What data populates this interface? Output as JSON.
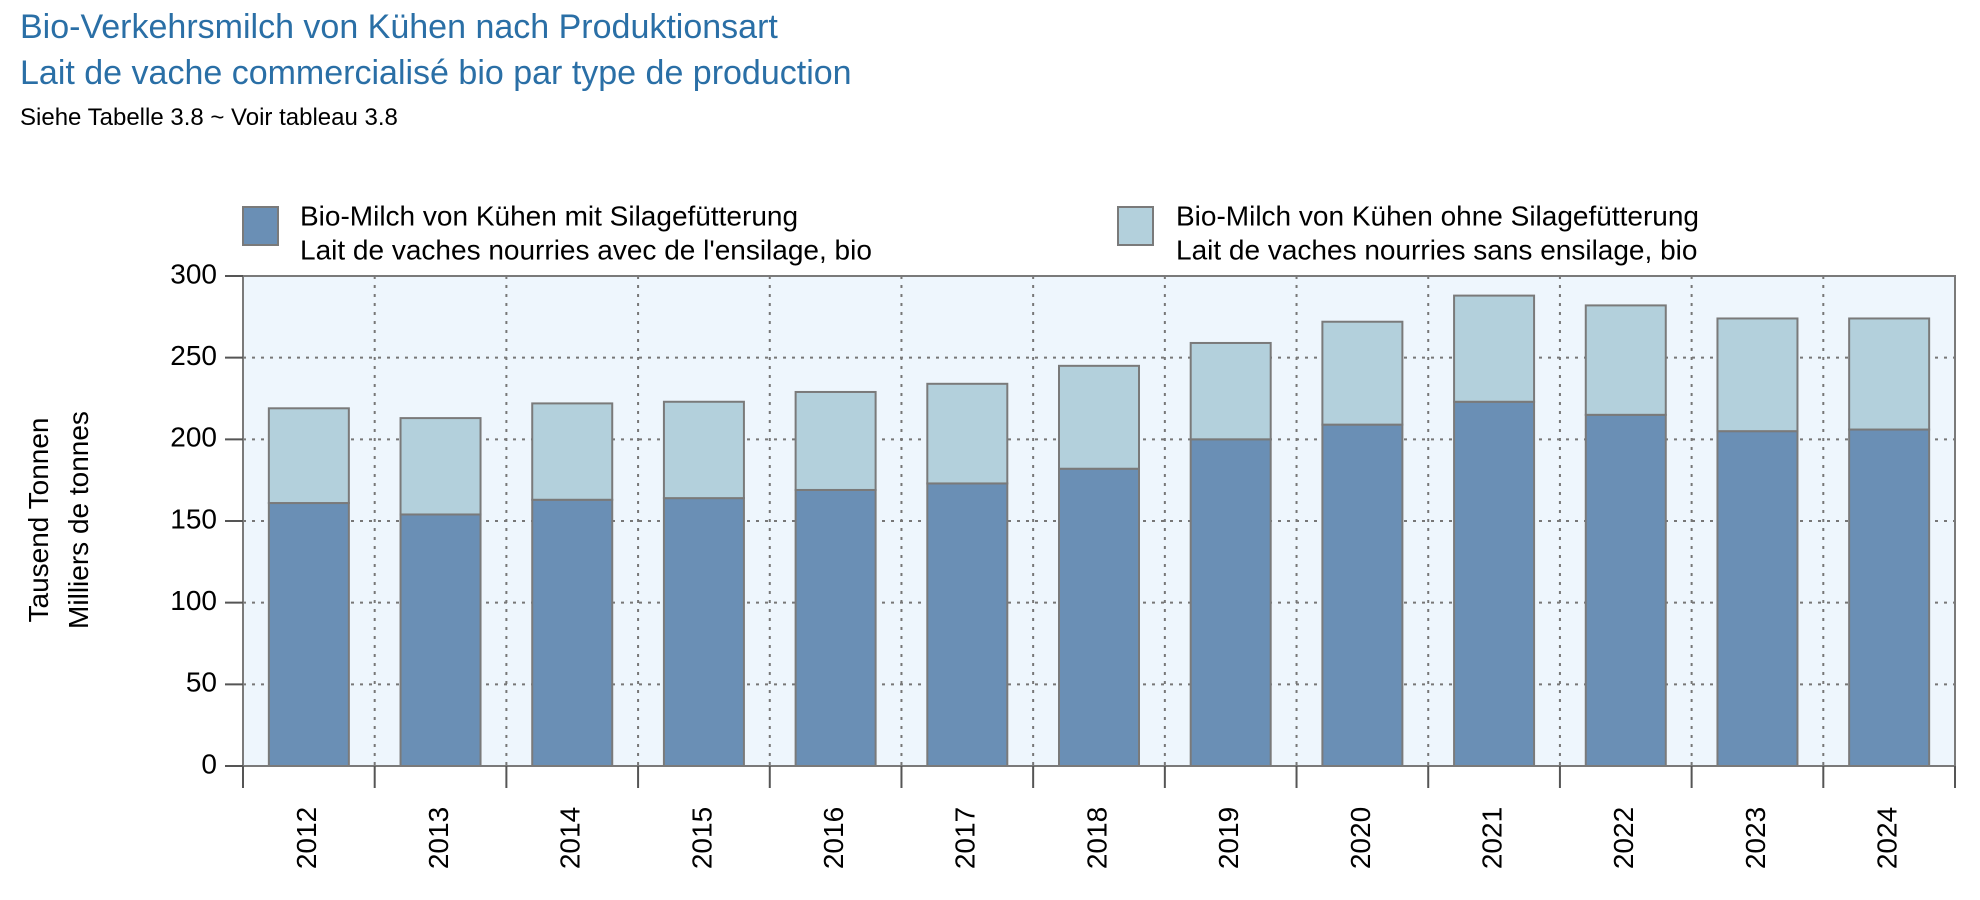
{
  "header": {
    "title_de": "Bio-Verkehrsmilch von Kühen nach Produktionsart",
    "title_fr": "Lait de vache commercialisé bio par type de production",
    "subtitle": "Siehe Tabelle 3.8  ~  Voir tableau 3.8"
  },
  "chart_data": {
    "type": "bar",
    "stacked": true,
    "categories": [
      "2012",
      "2013",
      "2014",
      "2015",
      "2016",
      "2017",
      "2018",
      "2019",
      "2020",
      "2021",
      "2022",
      "2023",
      "2024"
    ],
    "series": [
      {
        "name_de": "Bio-Milch von Kühen mit Silagefütterung",
        "name_fr": "Lait de vaches nourries avec de l'ensilage, bio",
        "color": "#6a8fb5",
        "values": [
          161,
          154,
          163,
          164,
          169,
          173,
          182,
          200,
          209,
          223,
          215,
          205,
          206
        ]
      },
      {
        "name_de": "Bio-Milch von Kühen ohne Silagefütterung",
        "name_fr": "Lait de vaches nourries sans ensilage, bio",
        "color": "#b3d0dc",
        "values": [
          58,
          59,
          59,
          59,
          60,
          61,
          63,
          59,
          63,
          65,
          67,
          69,
          68
        ]
      }
    ],
    "ylabel_de": "Tausend Tonnen",
    "ylabel_fr": "Milliers de tonnes",
    "ylim": [
      0,
      300
    ],
    "yticks": [
      0,
      50,
      100,
      150,
      200,
      250,
      300
    ],
    "grid": true,
    "legend_position": "top",
    "plot_background": "#eef6fd"
  }
}
